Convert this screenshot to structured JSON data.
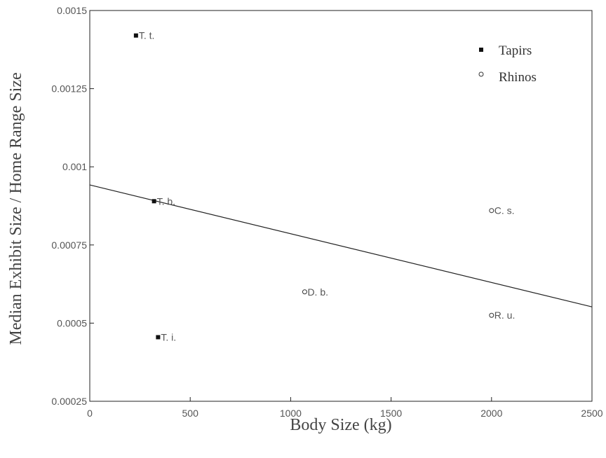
{
  "chart_data": {
    "type": "scatter",
    "xlabel": "Body Size (kg)",
    "ylabel": "Median Exhibit Size / Home Range Size",
    "xlim": [
      0,
      2500
    ],
    "ylim": [
      0.00025,
      0.0015
    ],
    "x_ticks": [
      {
        "value": 0,
        "label": "0"
      },
      {
        "value": 500,
        "label": "500"
      },
      {
        "value": 1000,
        "label": "1000"
      },
      {
        "value": 1500,
        "label": "1500"
      },
      {
        "value": 2000,
        "label": "2000"
      },
      {
        "value": 2500,
        "label": "2500"
      }
    ],
    "y_ticks": [
      {
        "value": 0.00025,
        "label": "0.00025"
      },
      {
        "value": 0.0005,
        "label": "0.0005"
      },
      {
        "value": 0.00075,
        "label": "0.00075"
      },
      {
        "value": 0.001,
        "label": "0.001"
      },
      {
        "value": 0.00125,
        "label": "0.00125"
      },
      {
        "value": 0.0015,
        "label": "0.0015"
      }
    ],
    "series": [
      {
        "name": "Tapirs",
        "marker": "filled-square",
        "color": "#111111",
        "points": [
          {
            "x": 230,
            "y": 0.00142,
            "label": "T. t."
          },
          {
            "x": 320,
            "y": 0.00089,
            "label": "T. b."
          },
          {
            "x": 340,
            "y": 0.000455,
            "label": "T. i."
          }
        ]
      },
      {
        "name": "Rhinos",
        "marker": "open-circle",
        "color": "#333333",
        "points": [
          {
            "x": 1070,
            "y": 0.0006,
            "label": "D. b."
          },
          {
            "x": 2000,
            "y": 0.00086,
            "label": "C. s."
          },
          {
            "x": 2000,
            "y": 0.000525,
            "label": "R. u."
          }
        ]
      }
    ],
    "trendline": {
      "x": [
        0,
        2500
      ],
      "y": [
        0.000942,
        0.000552
      ]
    },
    "grid": false,
    "legend_position": "top-right"
  }
}
